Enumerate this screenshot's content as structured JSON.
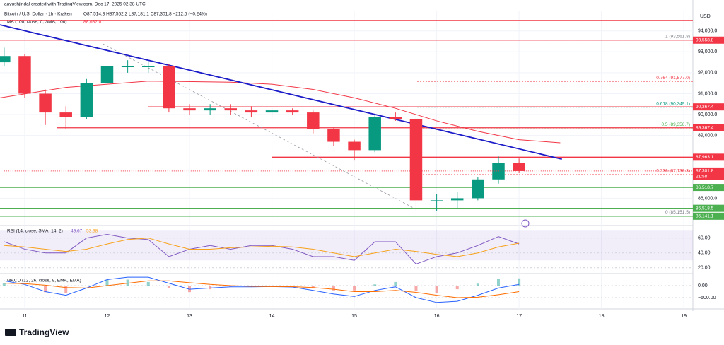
{
  "header": {
    "credit": "aayushjindal created with TradingView.com, Dec 17, 2025 02:38 UTC",
    "logo": "TradingView"
  },
  "chart_data": [
    {
      "type": "candlestick",
      "title": "Bitcoin / U.S. Dollar · 1h · Kraken",
      "subtitle": "O87,514.3 H87,552.2 L87,181.1 C87,301.8 −212.5 (−0.24%)",
      "y_label": "USD",
      "x": [
        10.75,
        11.0,
        11.25,
        11.5,
        11.75,
        12.0,
        12.25,
        12.5,
        12.75,
        13.0,
        13.25,
        13.5,
        13.75,
        14.0,
        14.25,
        14.5,
        14.75,
        15.0,
        15.25,
        15.5,
        15.75,
        16.0,
        16.25,
        16.5,
        16.75,
        17.0
      ],
      "open": [
        92500,
        92800,
        91000,
        90100,
        89900,
        91500,
        92300,
        92300,
        92300,
        90300,
        90200,
        90300,
        90200,
        90100,
        90200,
        90100,
        89300,
        88700,
        88300,
        89900,
        89800,
        85900,
        85900,
        86000,
        86900,
        87700
      ],
      "high": [
        93200,
        92900,
        91200,
        90400,
        91700,
        92700,
        92600,
        92500,
        92400,
        90500,
        90500,
        90500,
        90400,
        90300,
        90300,
        90200,
        89400,
        88800,
        90000,
        90100,
        89900,
        86200,
        86300,
        87000,
        88000,
        87900
      ],
      "low": [
        92300,
        90800,
        89500,
        89300,
        89800,
        91300,
        92000,
        92000,
        90100,
        90000,
        90000,
        90000,
        89900,
        89900,
        90000,
        89100,
        88500,
        87800,
        88200,
        89700,
        85500,
        85400,
        85500,
        85900,
        86700,
        87200
      ],
      "close": [
        92800,
        91000,
        90100,
        89900,
        91500,
        92300,
        92300,
        92300,
        90300,
        90200,
        90300,
        90200,
        90100,
        90200,
        90100,
        89300,
        88700,
        88300,
        89900,
        89800,
        85900,
        85900,
        86000,
        86900,
        87700,
        87300
      ],
      "up_color": "#089981",
      "down_color": "#f23645",
      "xlim": [
        10.7,
        19.11
      ],
      "xticks": [
        11,
        12,
        13,
        14,
        15,
        16,
        17,
        18,
        19
      ],
      "ylim": [
        84730,
        94970
      ],
      "yticks": [
        {
          "value": 94000,
          "label": "94,000.0"
        },
        {
          "value": 93000,
          "label": "93,000.0"
        },
        {
          "value": 92000,
          "label": "92,000.0"
        },
        {
          "value": 91000,
          "label": "91,000.0"
        },
        {
          "value": 90000,
          "label": "90,000.0"
        },
        {
          "value": 89000,
          "label": "89,000.0"
        },
        {
          "value": 86000,
          "label": "86,000.0"
        }
      ],
      "levels": [
        {
          "value": 94500,
          "color": "#f23645"
        },
        {
          "value": 93558.8,
          "label": "93,558.8",
          "color": "#f23645"
        },
        {
          "value": 90367.4,
          "label": "90,367.4",
          "color": "#f23645"
        },
        {
          "value": 89367.4,
          "label": "89,367.4",
          "color": "#f23645"
        },
        {
          "value": 87963.1,
          "label": "87,963.1",
          "color": "#f23645"
        },
        {
          "value": 86518.7,
          "label": "86,518.7",
          "color": "#4caf50"
        },
        {
          "value": 85518.5,
          "label": "85,518.5",
          "color": "#4caf50"
        },
        {
          "value": 85141.1,
          "label": "85,141.1",
          "color": "#4caf50"
        }
      ],
      "fib_levels": [
        {
          "value": 93561.8,
          "label": "1 (93,561.8)",
          "color": "#787b86"
        },
        {
          "value": 91577.0,
          "label": "0.764 (91,577.0)",
          "color": "#f23645"
        },
        {
          "value": 90349.1,
          "label": "0.618 (90,349.1)",
          "color": "#089981"
        },
        {
          "value": 89356.7,
          "label": "0.5 (89,356.7)",
          "color": "#4caf50"
        },
        {
          "value": 87136.3,
          "label": "0.236 (87,136.3)",
          "color": "#f23645"
        },
        {
          "value": 85151.5,
          "label": "0 (85,151.5)",
          "color": "#787b86"
        }
      ],
      "trendlines": [
        {
          "x": [
            10.7,
            17.52
          ],
          "values": [
            94290,
            87870
          ],
          "color": "#1c1cc8",
          "dashed": false
        },
        {
          "x": [
            11.95,
            15.75
          ],
          "values": [
            93380,
            85470
          ],
          "color": "#9598a1",
          "dashed": true
        }
      ],
      "ma": {
        "name": "MA (100, close, 0, SMA, 100)",
        "value_label": "88,682.0",
        "color": "#f23645",
        "x": [
          10.7,
          11.5,
          12.5,
          13.5,
          14.0,
          14.5,
          15.0,
          15.5,
          16.0,
          16.5,
          17.0,
          17.5
        ],
        "values": [
          90800,
          91300,
          91600,
          91550,
          91450,
          91200,
          90800,
          90300,
          89700,
          89200,
          88800,
          88650
        ]
      },
      "last_price": {
        "value": 87301.8,
        "label": "87,301.8",
        "timer": "21:58"
      }
    },
    {
      "type": "line",
      "title": "RSI (14, close, SMA, 14, 2)",
      "legend_values": [
        "49.67",
        "53.38"
      ],
      "ylim": [
        14,
        74
      ],
      "yticks": [
        {
          "value": 60,
          "label": "60.00"
        },
        {
          "value": 40,
          "label": "40.00"
        },
        {
          "value": 20,
          "label": "20.00"
        }
      ],
      "band": [
        30,
        70
      ],
      "series": [
        {
          "color": "#7e57c2",
          "values": [
            55,
            45,
            40,
            40,
            60,
            65,
            60,
            58,
            35,
            45,
            50,
            45,
            50,
            50,
            45,
            35,
            35,
            30,
            55,
            55,
            25,
            35,
            40,
            50,
            62,
            52
          ]
        },
        {
          "color": "#f7a21b",
          "values": [
            50,
            48,
            45,
            42,
            45,
            52,
            58,
            60,
            52,
            45,
            45,
            47,
            48,
            49,
            48,
            45,
            40,
            35,
            40,
            45,
            42,
            38,
            35,
            40,
            48,
            53
          ]
        }
      ]
    },
    {
      "type": "line",
      "title": "MACD (12, 26, close, 9, EMA, EMA)",
      "ylim": [
        -941,
        353
      ],
      "yticks": [
        {
          "value": 0,
          "label": "0.00"
        },
        {
          "value": -500,
          "label": "−500.00"
        }
      ],
      "histogram": [
        100,
        -30,
        -270,
        -320,
        0,
        250,
        250,
        150,
        -100,
        -270,
        -150,
        -50,
        -20,
        0,
        -15,
        -120,
        -200,
        -200,
        50,
        150,
        -220,
        -300,
        -150,
        80,
        280,
        300
      ],
      "series": [
        {
          "color": "#2962ff",
          "values": [
            200,
            50,
            -250,
            -400,
            -100,
            250,
            350,
            350,
            100,
            -150,
            -100,
            -50,
            -50,
            -40,
            -60,
            -200,
            -350,
            -450,
            -200,
            -50,
            -500,
            -700,
            -650,
            -400,
            -100,
            50
          ]
        },
        {
          "color": "#ff6d00",
          "values": [
            100,
            80,
            20,
            -80,
            -100,
            0,
            100,
            200,
            200,
            120,
            50,
            0,
            -30,
            -40,
            -45,
            -80,
            -150,
            -250,
            -250,
            -200,
            -280,
            -400,
            -500,
            -480,
            -380,
            -250
          ]
        }
      ]
    }
  ]
}
